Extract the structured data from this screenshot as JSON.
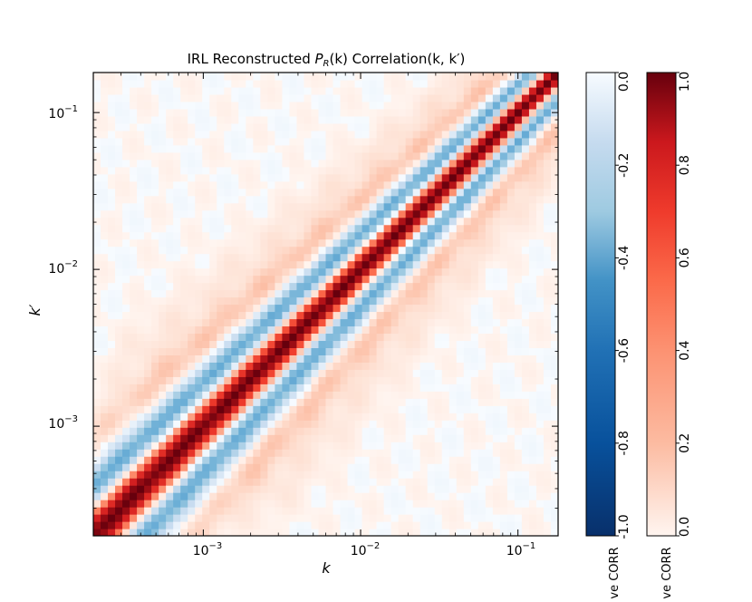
{
  "chart_data": {
    "type": "heatmap",
    "title": "IRL Reconstructed P_R(k) Correlation(k, k')",
    "title_parts": {
      "prefix": "IRL Reconstructed ",
      "P": "P",
      "sub": "R",
      "mid": "(k) Correlation(k, k",
      "suffix": "′)"
    },
    "xlabel": "k",
    "ylabel": "k′",
    "x_scale": "log",
    "y_scale": "log",
    "xlim": [
      0.0002,
      0.18
    ],
    "ylim": [
      0.0002,
      0.18
    ],
    "x_ticks": [
      {
        "value": 0.001,
        "base": "10",
        "exp": "−3"
      },
      {
        "value": 0.01,
        "base": "10",
        "exp": "−2"
      },
      {
        "value": 0.1,
        "base": "10",
        "exp": "−1"
      }
    ],
    "y_ticks": [
      {
        "value": 0.001,
        "base": "10",
        "exp": "−3"
      },
      {
        "value": 0.01,
        "base": "10",
        "exp": "−2"
      },
      {
        "value": 0.1,
        "base": "10",
        "exp": "−1"
      }
    ],
    "grid_n": 64,
    "matrix_description_values": {
      "diagonal": 1.0,
      "first_anticorrelation_band": -0.55,
      "second_positive_band": 0.2
    },
    "colorbars": [
      {
        "name": "negative",
        "colormap": "Blues_r",
        "range": [
          -1.0,
          0.0
        ],
        "ticks": [
          "-1.0",
          "-0.8",
          "-0.6",
          "-0.4",
          "-0.2",
          "0.0"
        ],
        "tick_values": [
          -1.0,
          -0.8,
          -0.6,
          -0.4,
          -0.2,
          0.0
        ],
        "label": "ve CORR"
      },
      {
        "name": "positive",
        "colormap": "Reds",
        "range": [
          0.0,
          1.0
        ],
        "ticks": [
          "0.0",
          "0.2",
          "0.4",
          "0.6",
          "0.8",
          "1.0"
        ],
        "tick_values": [
          0.0,
          0.2,
          0.4,
          0.6,
          0.8,
          1.0
        ],
        "label": "ve CORR"
      }
    ],
    "colors": {
      "red_max": "#67000d",
      "red_mid": "#ef3b2c",
      "red_low": "#fee0d2",
      "white": "#ffffff",
      "blue_low": "#deebf7",
      "blue_mid": "#4292c6",
      "blue_max": "#08306b"
    }
  }
}
